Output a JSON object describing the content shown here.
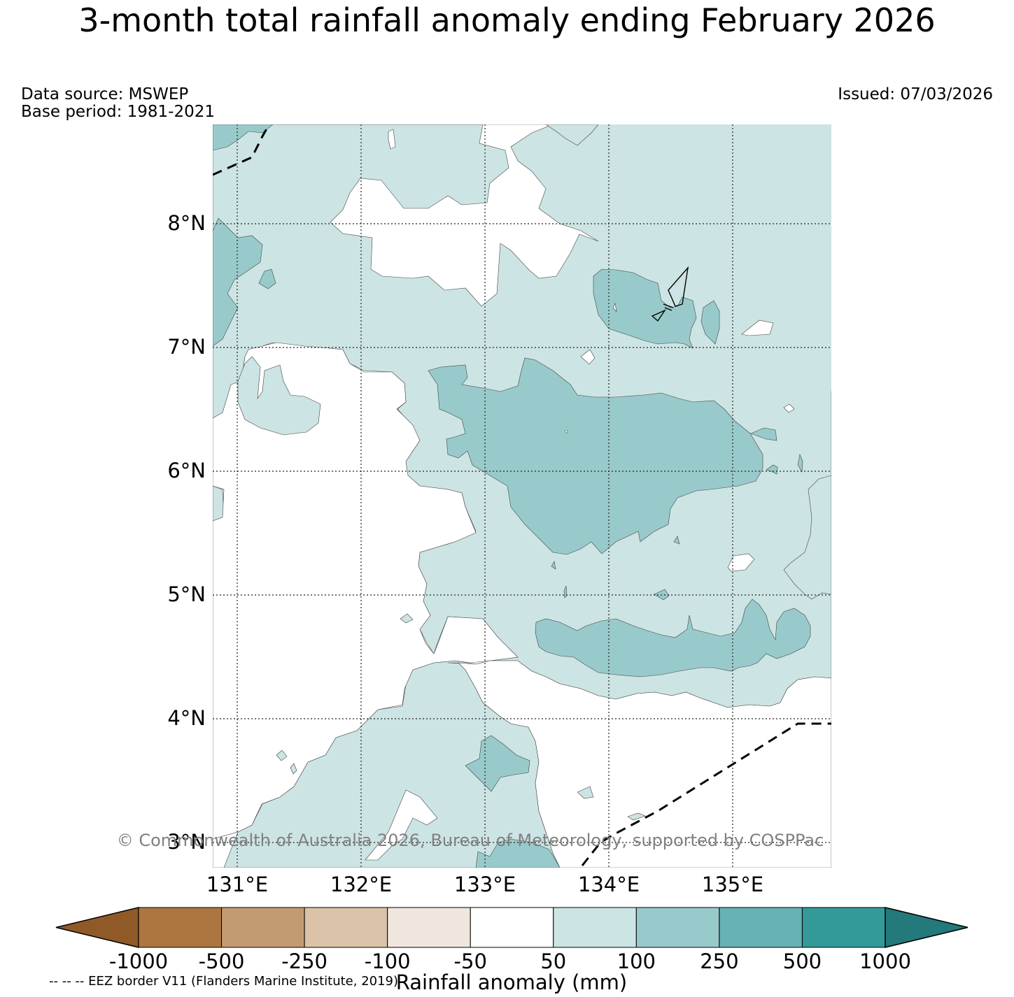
{
  "title": "3-month total rainfall anomaly ending February 2026",
  "data_source": "Data source: MSWEP",
  "base_period": "Base period: 1981-2021",
  "issued": "Issued: 07/03/2026",
  "copyright": "© Commonwealth of Australia 2026, Bureau of Meteorology, supported by COSPPac",
  "eez_note": "-- -- -- EEZ border V11 (Flanders Marine Institute, 2019)",
  "colorbar": {
    "label": "Rainfall anomaly (mm)",
    "ticks": [
      "-1000",
      "-500",
      "-250",
      "-100",
      "-50",
      "50",
      "100",
      "250",
      "500",
      "1000"
    ],
    "colors": [
      "#8f5a28",
      "#ac7640",
      "#c39b73",
      "#dbc3a9",
      "#efe6dd",
      "#ffffff",
      "#cce4e3",
      "#99cacb",
      "#66b2b4",
      "#339a98",
      "#24797a"
    ]
  },
  "map": {
    "lat_labels": [
      "8°N",
      "7°N",
      "6°N",
      "5°N",
      "4°N",
      "3°N"
    ],
    "lon_labels": [
      "131°E",
      "132°E",
      "133°E",
      "134°E",
      "135°E"
    ],
    "lat_range": [
      2.8,
      8.8
    ],
    "lon_range": [
      130.8,
      135.8
    ]
  }
}
